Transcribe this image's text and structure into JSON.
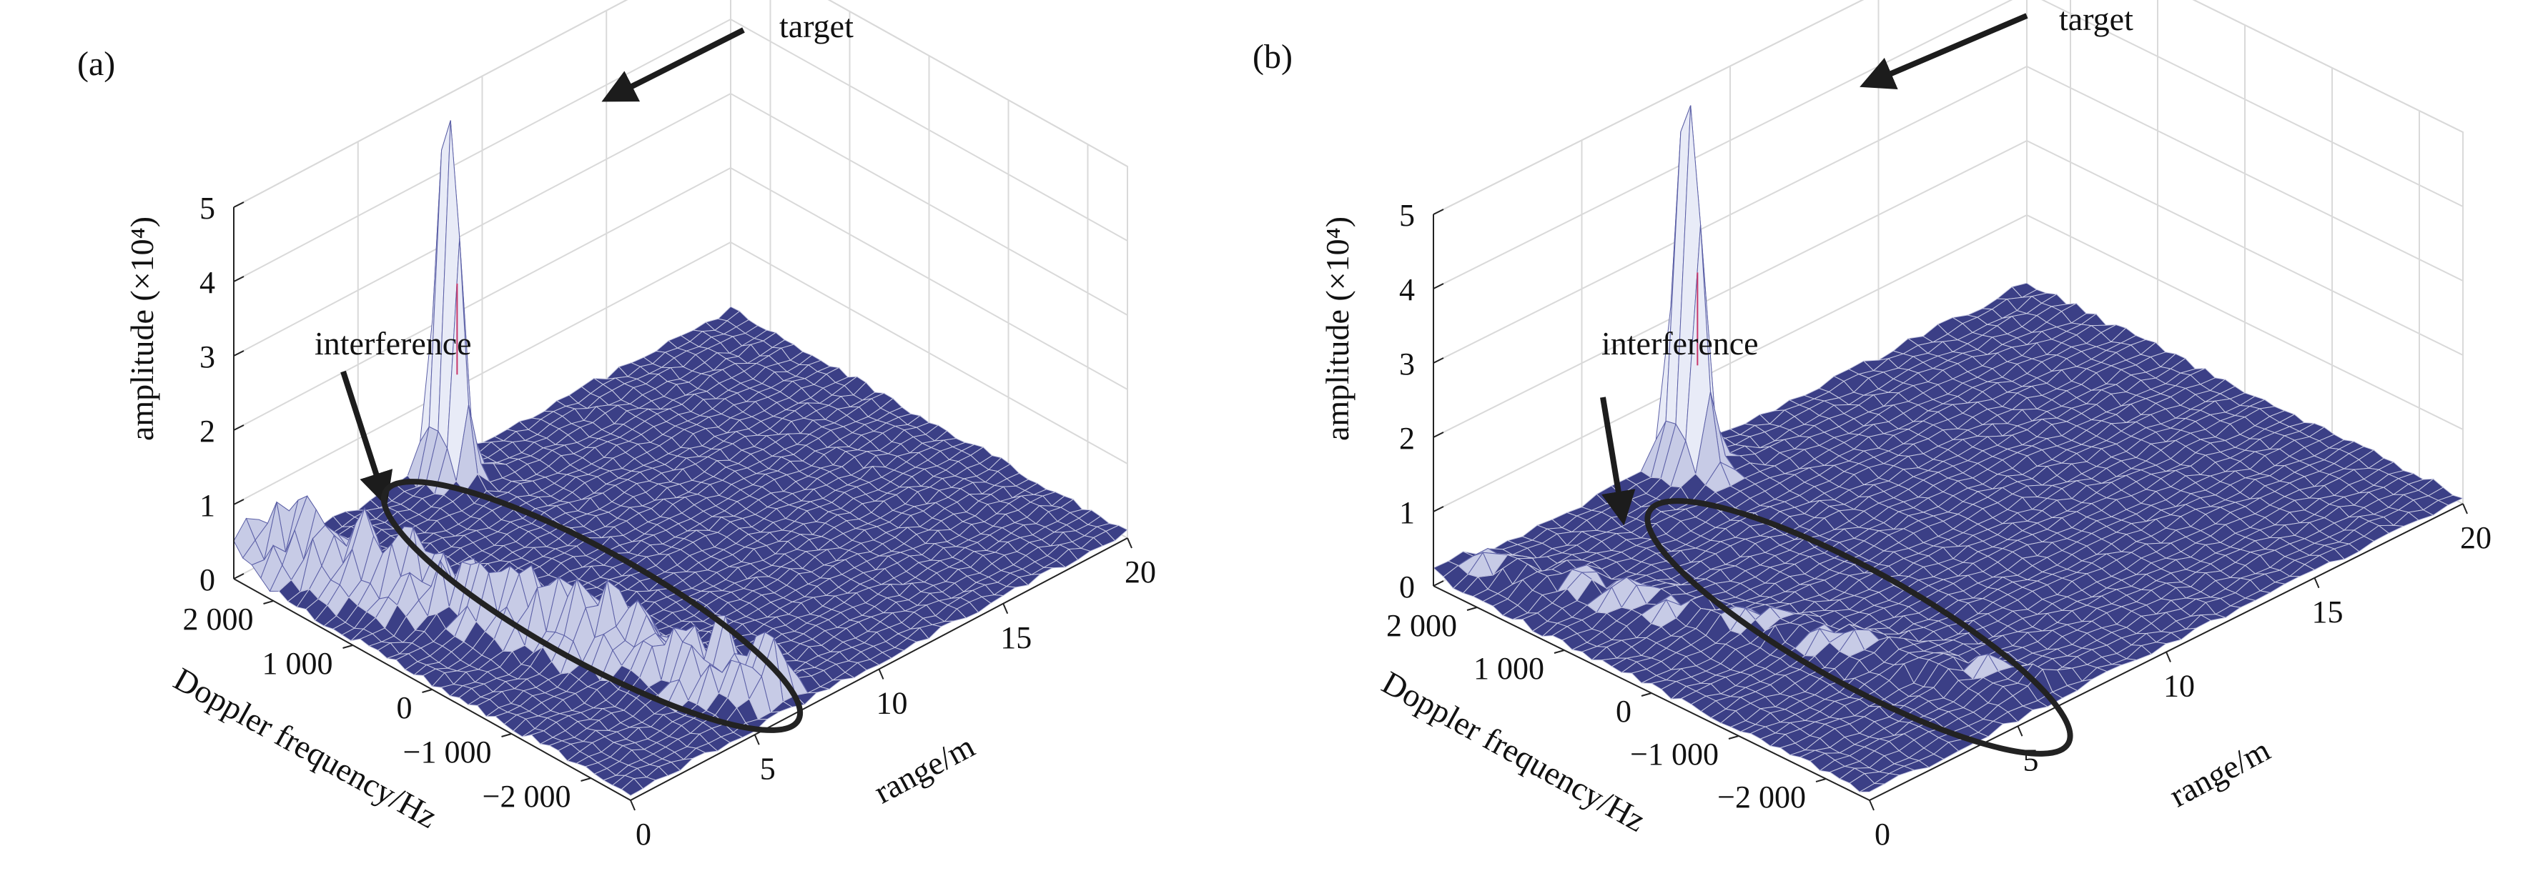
{
  "colors": {
    "mesh": "#3b3f86",
    "mesh_dark": "#25285f",
    "mesh_light": "#c7cbe6",
    "peak": "#c7376b",
    "grid": "#d9d9d9",
    "axis": "#222222",
    "annotation": "#1c1c1c"
  },
  "chart_data": [
    {
      "type": "surface",
      "panel_label": "(a)",
      "title": "",
      "xlabel": "range/m",
      "ylabel": "Doppler frequency/Hz",
      "zlabel": "amplitude (×10⁴)",
      "xlim": [
        0,
        20
      ],
      "ylim": [
        -2500,
        2500
      ],
      "zlim": [
        0,
        5
      ],
      "x_ticks": [
        0,
        5,
        10,
        15,
        20
      ],
      "x_tick_labels": [
        "0",
        "5",
        "10",
        "15",
        "20"
      ],
      "y_ticks": [
        2000,
        1000,
        0,
        -1000,
        -2000
      ],
      "y_tick_labels": [
        "2 000",
        "1 000",
        "0",
        "−1 000",
        "−2 000"
      ],
      "z_ticks": [
        0,
        1,
        2,
        3,
        4,
        5
      ],
      "z_tick_labels": [
        "0",
        "1",
        "2",
        "3",
        "4",
        "5"
      ],
      "grid": true,
      "peaks": [
        {
          "name": "target",
          "range": 8,
          "doppler": 2300,
          "amplitude": 4.9
        },
        {
          "name": "interference",
          "range_start": 1,
          "range_end": 6,
          "doppler_start": 2400,
          "doppler_end": -2100,
          "amplitude": 0.9
        }
      ],
      "annotations": [
        {
          "text": "target",
          "points_to": "peak at range ≈ 8 m, amplitude ≈ 4.9"
        },
        {
          "text": "interference",
          "points_to": "ridge along Doppler axis near range 1–6 m"
        }
      ]
    },
    {
      "type": "surface",
      "panel_label": "(b)",
      "title": "",
      "xlabel": "range/m",
      "ylabel": "Doppler frequency/Hz",
      "zlabel": "amplitude (×10⁴)",
      "xlim": [
        0,
        20
      ],
      "ylim": [
        -2500,
        2500
      ],
      "zlim": [
        0,
        5
      ],
      "x_ticks": [
        0,
        5,
        10,
        15,
        20
      ],
      "x_tick_labels": [
        "0",
        "5",
        "10",
        "15",
        "20"
      ],
      "y_ticks": [
        2000,
        1000,
        0,
        -1000,
        -2000
      ],
      "y_tick_labels": [
        "2 000",
        "1 000",
        "0",
        "−1 000",
        "−2 000"
      ],
      "z_ticks": [
        0,
        1,
        2,
        3,
        4,
        5
      ],
      "z_tick_labels": [
        "0",
        "1",
        "2",
        "3",
        "4",
        "5"
      ],
      "grid": true,
      "peaks": [
        {
          "name": "target",
          "range": 8,
          "doppler": 2300,
          "amplitude": 5.0
        },
        {
          "name": "interference",
          "range_start": 1,
          "range_end": 6,
          "doppler_start": 2400,
          "doppler_end": -2100,
          "amplitude": 0.25
        }
      ],
      "annotations": [
        {
          "text": "target",
          "points_to": "peak at range ≈ 8 m, amplitude ≈ 5.0"
        },
        {
          "text": "interference",
          "points_to": "suppressed ridge along Doppler axis near range 1–6 m"
        }
      ]
    }
  ]
}
